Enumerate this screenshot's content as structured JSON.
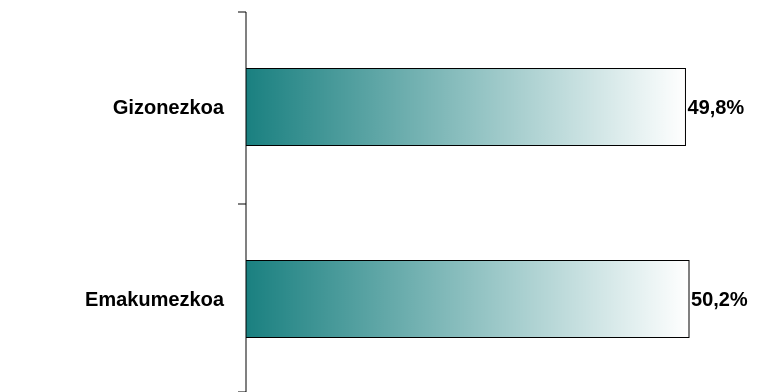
{
  "chart_data": {
    "type": "bar",
    "orientation": "horizontal",
    "categories": [
      "Gizonezkoa",
      "Emakumezkoa"
    ],
    "values": [
      49.8,
      50.2
    ],
    "value_labels": [
      "49,8%",
      "50,2%"
    ],
    "xlim": [
      0,
      50.2
    ],
    "grid": false,
    "legend": "none",
    "colors": {
      "bar_start": "#1a8080",
      "bar_end": "#ffffff",
      "outline": "#000000"
    }
  }
}
